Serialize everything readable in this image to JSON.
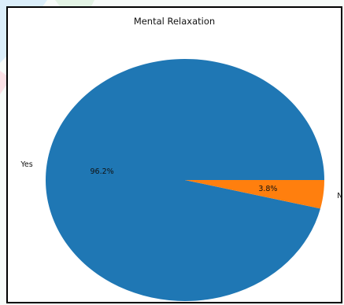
{
  "chart_data": {
    "type": "pie",
    "title": "Mental Relaxation",
    "slices": [
      {
        "label": "Yes",
        "value": 96.2,
        "pct_label": "96.2%",
        "color": "#1f77b4"
      },
      {
        "label": "No",
        "value": 3.8,
        "pct_label": "3.8%",
        "color": "#ff7f0e"
      }
    ],
    "start_angle_deg": 0,
    "direction": "counterclockwise"
  },
  "colors": {
    "frame_border": "#000000",
    "background": "#ffffff"
  }
}
